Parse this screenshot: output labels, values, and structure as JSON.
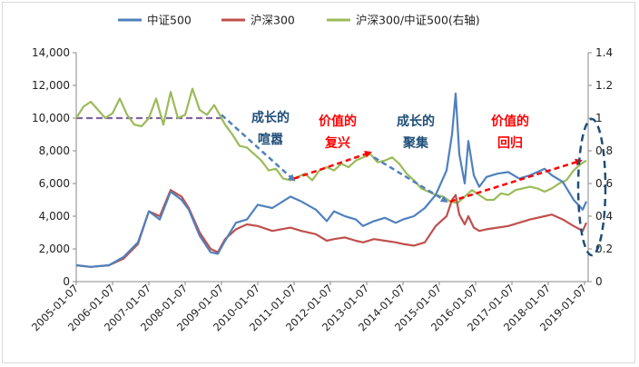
{
  "chart_data": {
    "type": "line",
    "title": "",
    "xlabel": "",
    "ylabel": "",
    "ylim": [
      0,
      14000
    ],
    "y2lim": [
      0,
      1.4
    ],
    "yticks": [
      "0",
      "2,000",
      "4,000",
      "6,000",
      "8,000",
      "10,000",
      "12,000",
      "14,000"
    ],
    "y2ticks": [
      "0",
      "0.2",
      "0.4",
      "0.6",
      "0.8",
      "1",
      "1.2",
      "1.4"
    ],
    "xticks": [
      "2005-01-07",
      "2006-01-07",
      "2007-01-07",
      "2008-01-07",
      "2009-01-07",
      "2010-01-07",
      "2011-01-07",
      "2012-01-07",
      "2013-01-07",
      "2014-01-07",
      "2015-01-07",
      "2016-01-07",
      "2017-01-07",
      "2018-01-07",
      "2019-01-07"
    ],
    "legend_position": "top",
    "grid": false,
    "series": [
      {
        "name": "中证500",
        "axis": "left",
        "color": "#4f81bd",
        "x": [
          2005.0,
          2005.4,
          2005.9,
          2006.3,
          2006.7,
          2007.0,
          2007.3,
          2007.6,
          2007.9,
          2008.1,
          2008.4,
          2008.7,
          2008.9,
          2009.1,
          2009.4,
          2009.7,
          2010.0,
          2010.4,
          2010.9,
          2011.2,
          2011.6,
          2011.9,
          2012.1,
          2012.4,
          2012.7,
          2012.9,
          2013.2,
          2013.5,
          2013.8,
          2014.0,
          2014.3,
          2014.6,
          2014.9,
          2015.2,
          2015.35,
          2015.45,
          2015.55,
          2015.7,
          2015.8,
          2015.95,
          2016.1,
          2016.3,
          2016.6,
          2016.9,
          2017.2,
          2017.5,
          2017.9,
          2018.1,
          2018.4,
          2018.7,
          2018.95,
          2019.05
        ],
        "y": [
          1000,
          900,
          1000,
          1500,
          2400,
          4300,
          3800,
          5500,
          5000,
          4400,
          2800,
          1800,
          1700,
          2500,
          3600,
          3800,
          4700,
          4500,
          5200,
          4900,
          4400,
          3700,
          4300,
          4000,
          3800,
          3400,
          3700,
          3900,
          3600,
          3800,
          4000,
          4500,
          5300,
          6800,
          9000,
          11500,
          7800,
          6000,
          8600,
          6500,
          5800,
          6400,
          6600,
          6700,
          6300,
          6500,
          6900,
          6500,
          6100,
          5000,
          4400,
          4900
        ]
      },
      {
        "name": "沪深300",
        "axis": "left",
        "color": "#c0504d",
        "x": [
          2005.0,
          2005.4,
          2005.9,
          2006.3,
          2006.7,
          2007.0,
          2007.3,
          2007.6,
          2007.9,
          2008.1,
          2008.4,
          2008.7,
          2008.9,
          2009.1,
          2009.4,
          2009.7,
          2010.0,
          2010.4,
          2010.9,
          2011.2,
          2011.6,
          2011.9,
          2012.1,
          2012.4,
          2012.7,
          2012.9,
          2013.2,
          2013.5,
          2013.8,
          2014.0,
          2014.3,
          2014.6,
          2014.9,
          2015.2,
          2015.35,
          2015.45,
          2015.55,
          2015.7,
          2015.8,
          2015.95,
          2016.1,
          2016.3,
          2016.6,
          2016.9,
          2017.2,
          2017.5,
          2017.9,
          2018.1,
          2018.4,
          2018.7,
          2018.95,
          2019.05
        ],
        "y": [
          1000,
          900,
          1000,
          1400,
          2300,
          4300,
          4000,
          5600,
          5200,
          4500,
          3000,
          2000,
          1800,
          2600,
          3200,
          3500,
          3400,
          3100,
          3300,
          3100,
          2900,
          2500,
          2600,
          2700,
          2500,
          2400,
          2600,
          2500,
          2400,
          2300,
          2200,
          2400,
          3400,
          4000,
          5000,
          5300,
          4100,
          3500,
          4000,
          3300,
          3100,
          3200,
          3300,
          3400,
          3600,
          3800,
          4000,
          4100,
          3800,
          3400,
          3100,
          3600
        ]
      },
      {
        "name": "沪深300/中证500(右轴)",
        "axis": "right",
        "color": "#9bbb59",
        "x": [
          2005.0,
          2005.2,
          2005.4,
          2005.6,
          2005.8,
          2006.0,
          2006.2,
          2006.4,
          2006.6,
          2006.8,
          2007.0,
          2007.2,
          2007.4,
          2007.6,
          2007.8,
          2008.0,
          2008.2,
          2008.4,
          2008.6,
          2008.8,
          2008.95,
          2009.1,
          2009.3,
          2009.5,
          2009.7,
          2009.9,
          2010.1,
          2010.3,
          2010.5,
          2010.7,
          2010.9,
          2011.1,
          2011.3,
          2011.5,
          2011.7,
          2011.9,
          2012.1,
          2012.3,
          2012.5,
          2012.7,
          2012.9,
          2013.1,
          2013.3,
          2013.5,
          2013.7,
          2013.9,
          2014.1,
          2014.3,
          2014.5,
          2014.7,
          2014.9,
          2015.1,
          2015.3,
          2015.5,
          2015.7,
          2015.9,
          2016.1,
          2016.3,
          2016.5,
          2016.7,
          2016.9,
          2017.1,
          2017.3,
          2017.5,
          2017.7,
          2017.9,
          2018.1,
          2018.3,
          2018.5,
          2018.7,
          2018.9,
          2019.05
        ],
        "y": [
          1.0,
          1.07,
          1.1,
          1.05,
          1.0,
          1.03,
          1.12,
          1.02,
          0.96,
          0.95,
          1.0,
          1.12,
          0.96,
          1.16,
          1.0,
          1.02,
          1.18,
          1.05,
          1.02,
          1.08,
          1.02,
          0.96,
          0.9,
          0.83,
          0.82,
          0.78,
          0.74,
          0.68,
          0.69,
          0.63,
          0.62,
          0.64,
          0.66,
          0.62,
          0.68,
          0.7,
          0.68,
          0.72,
          0.7,
          0.74,
          0.76,
          0.78,
          0.73,
          0.74,
          0.76,
          0.72,
          0.66,
          0.62,
          0.57,
          0.55,
          0.53,
          0.52,
          0.49,
          0.48,
          0.52,
          0.56,
          0.53,
          0.5,
          0.5,
          0.54,
          0.53,
          0.56,
          0.57,
          0.58,
          0.57,
          0.55,
          0.57,
          0.6,
          0.62,
          0.68,
          0.72,
          0.74
        ]
      }
    ],
    "annotations": [
      {
        "text_line1": "成长的",
        "text_line2": "喧嚣",
        "color": "#1f4e79"
      },
      {
        "text_line1": "价值的",
        "text_line2": "复兴",
        "color": "#ff0000"
      },
      {
        "text_line1": "成长的",
        "text_line2": "聚集",
        "color": "#1f4e79"
      },
      {
        "text_line1": "价值的",
        "text_line2": "回归",
        "color": "#ff0000"
      }
    ],
    "reference_line": {
      "value": 1.0,
      "axis": "right",
      "color": "#8064a2",
      "style": "dashed"
    },
    "trend_arrows": [
      {
        "from": [
          2009.0,
          1.02
        ],
        "to": [
          2011.0,
          0.62
        ],
        "color": "#4f81bd",
        "style": "dashed"
      },
      {
        "from": [
          2011.0,
          0.63
        ],
        "to": [
          2013.1,
          0.79
        ],
        "color": "#ff0000",
        "style": "dashed"
      },
      {
        "from": [
          2013.2,
          0.76
        ],
        "to": [
          2015.2,
          0.49
        ],
        "color": "#4f81bd",
        "style": "dashed"
      },
      {
        "from": [
          2015.3,
          0.49
        ],
        "to": [
          2018.9,
          0.74
        ],
        "color": "#ff0000",
        "style": "dashed"
      }
    ]
  }
}
